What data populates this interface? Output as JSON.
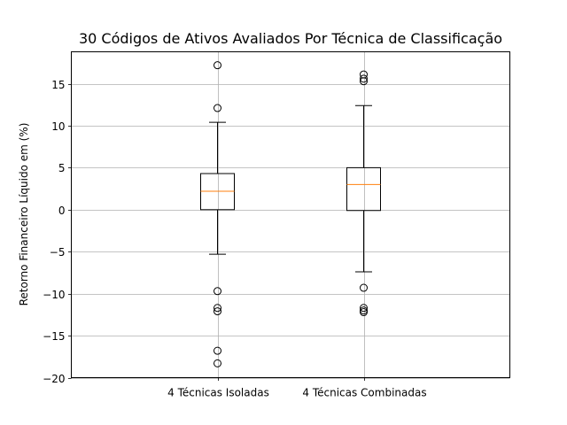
{
  "chart_data": {
    "type": "boxplot",
    "title": "30 Códigos de Ativos Avaliados Por Técnica de Classificação",
    "xlabel": "",
    "ylabel": "Retorno Financeiro Líquido em (%)",
    "ylim": [
      -20,
      18.8
    ],
    "yticks": [
      -20,
      -15,
      -10,
      -5,
      0,
      5,
      10,
      15
    ],
    "ytick_labels": [
      "−20",
      "−15",
      "−10",
      "−5",
      "0",
      "5",
      "10",
      "15"
    ],
    "grid": true,
    "legend": "none",
    "categories": [
      "4 Técnicas Isoladas",
      "4 Técnicas Combinadas"
    ],
    "series": [
      {
        "category": "4 Técnicas Isoladas",
        "whisker_low": -5.3,
        "q1": 0.0,
        "median": 2.2,
        "q3": 4.3,
        "whisker_high": 10.4,
        "outliers": [
          17.2,
          12.1,
          -9.7,
          -11.7,
          -12.1,
          -16.8,
          -18.3
        ]
      },
      {
        "category": "4 Técnicas Combinadas",
        "whisker_low": -7.4,
        "q1": -0.1,
        "median": 3.0,
        "q3": 5.0,
        "whisker_high": 12.4,
        "outliers": [
          16.1,
          15.6,
          15.3,
          -9.3,
          -11.7,
          -12.0,
          -12.2
        ]
      }
    ],
    "colors": {
      "box": "#000000",
      "median": "#ff7f0e",
      "grid": "#b0b0b0"
    }
  }
}
